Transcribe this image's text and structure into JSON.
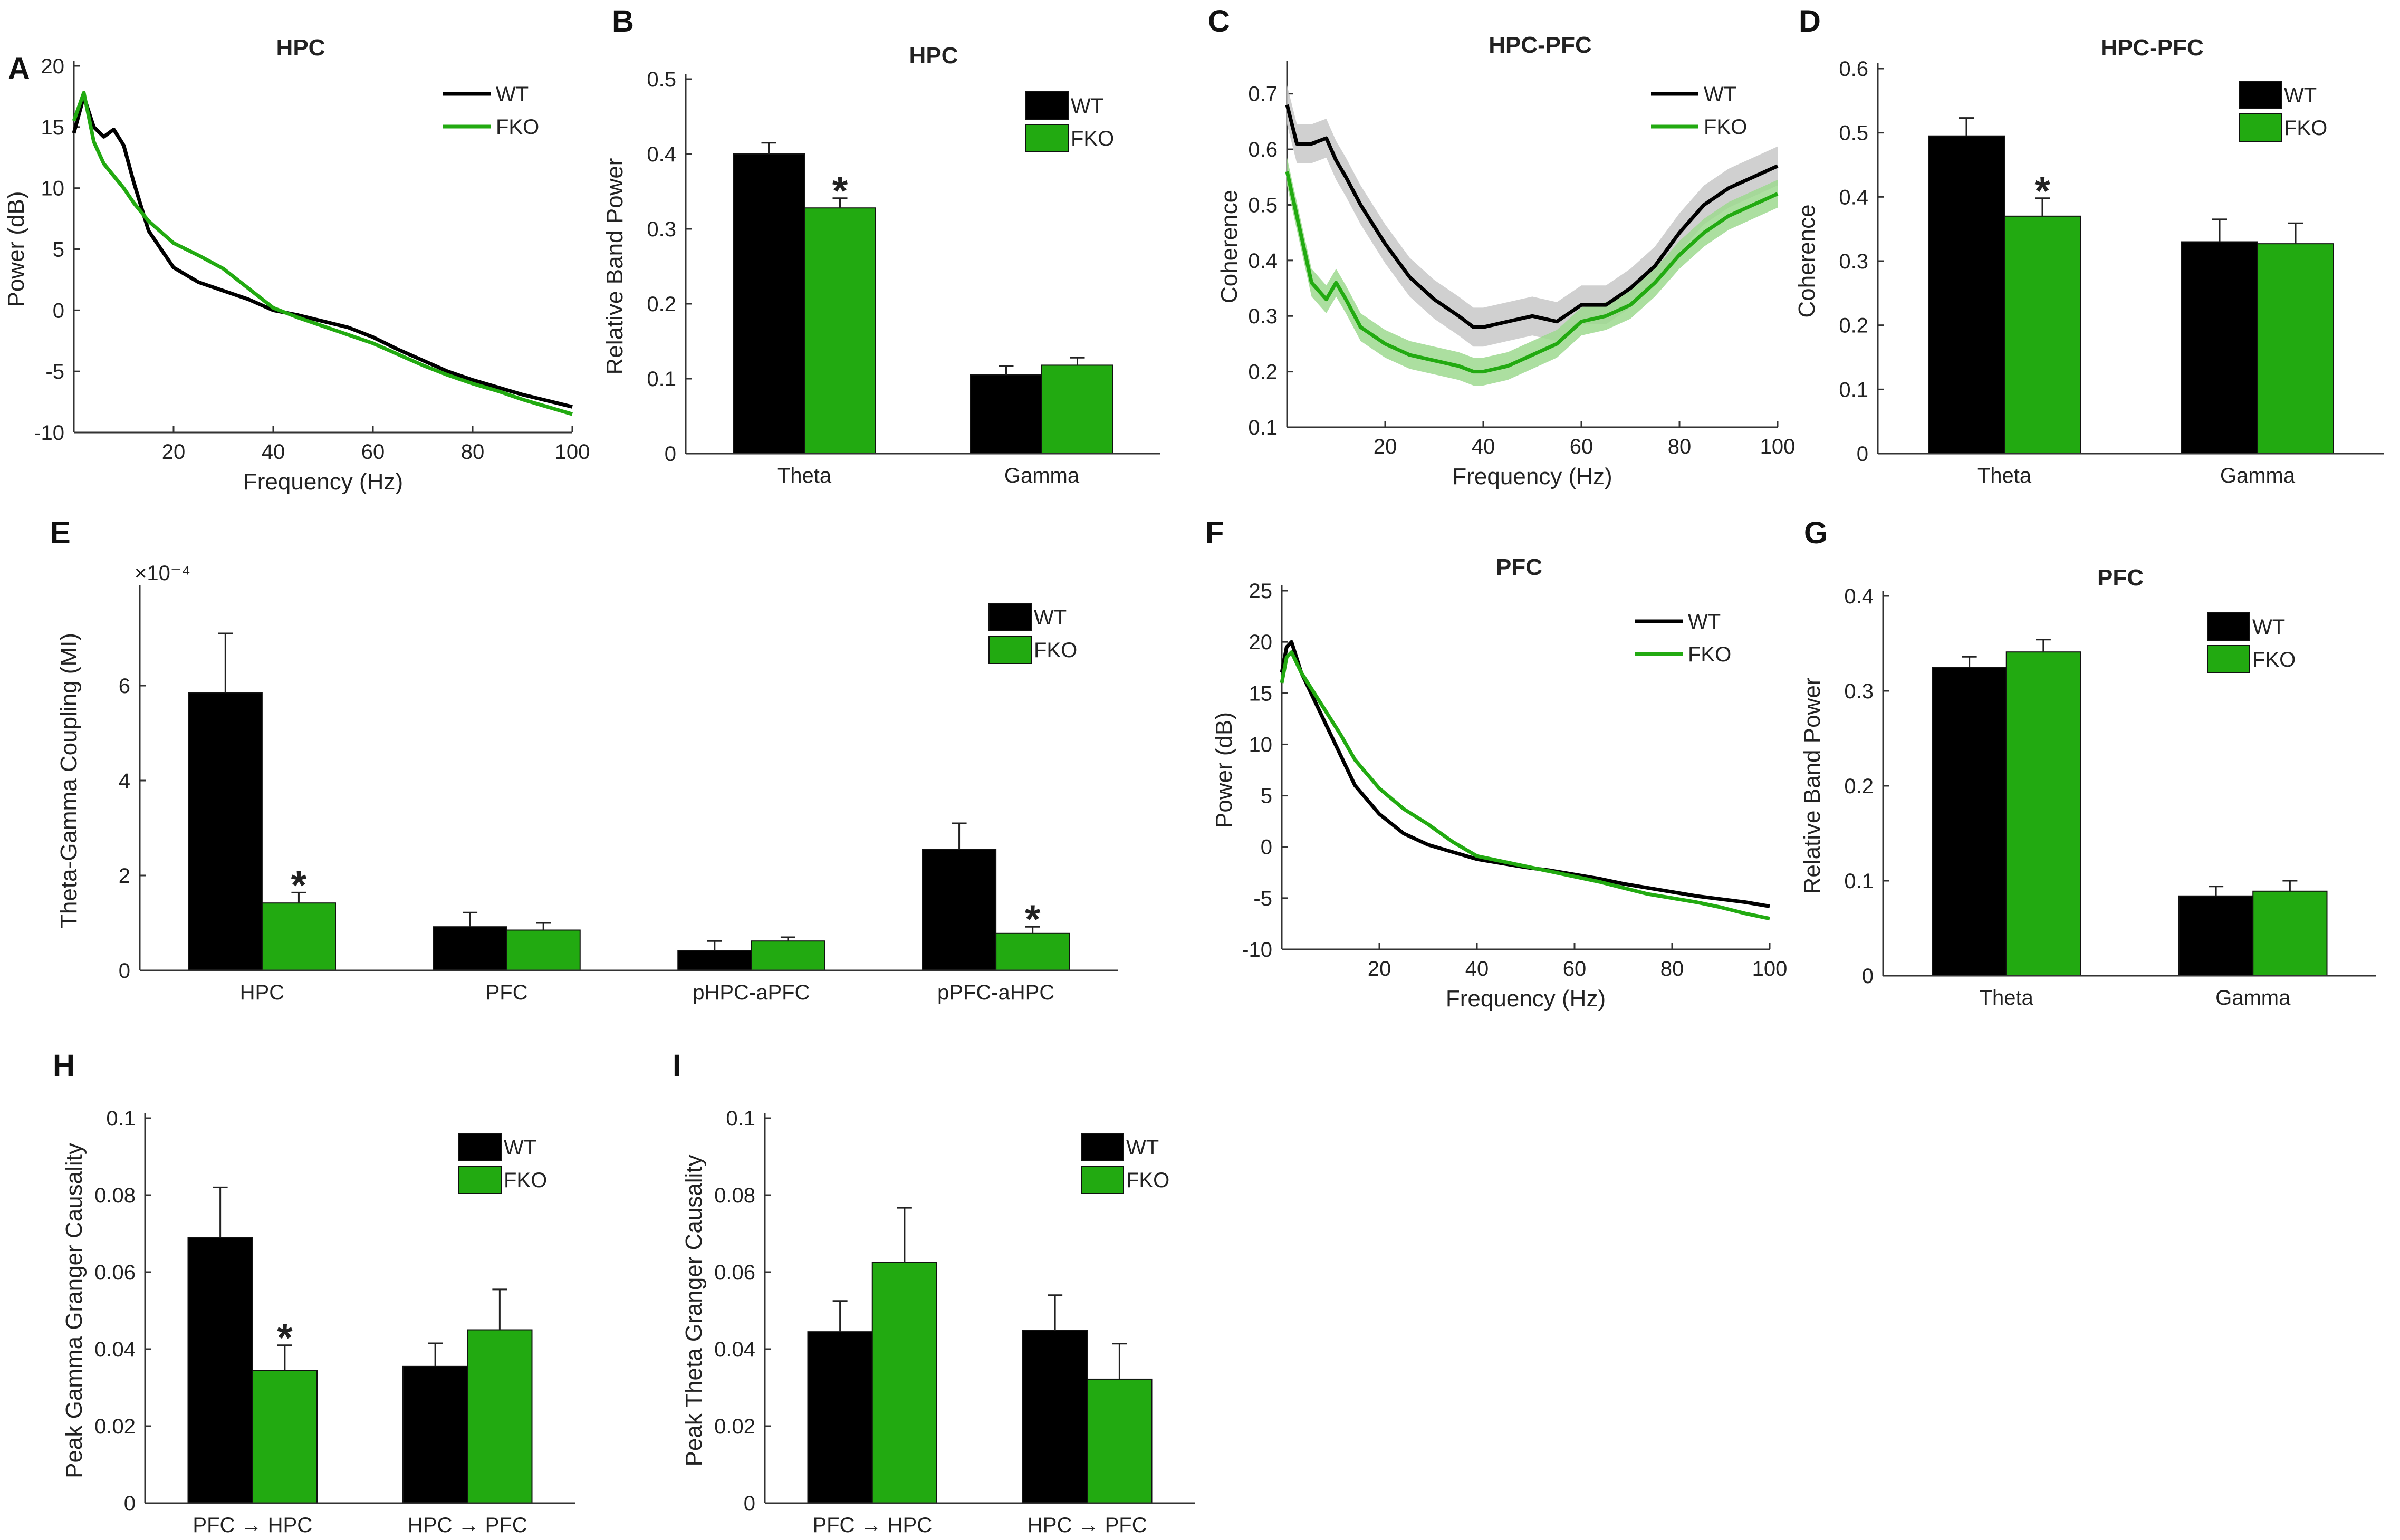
{
  "colors": {
    "wt": "#000000",
    "fko": "#22aa11",
    "wt_band": "#c8c8c8",
    "fko_band": "#9ed98f",
    "axis": "#333333"
  },
  "legend": {
    "wt": "WT",
    "fko": "FKO"
  },
  "chart_data": [
    {
      "id": "A",
      "panel_label": "A",
      "type": "line",
      "title": "HPC",
      "xlabel": "Frequency (Hz)",
      "ylabel": "Power (dB)",
      "xlim": [
        0,
        100
      ],
      "ylim": [
        -10,
        20
      ],
      "xticks": [
        20,
        40,
        60,
        80,
        100
      ],
      "xtick_labels": [
        "20",
        "40",
        "60",
        "80",
        "100"
      ],
      "yticks": [
        -10,
        -5,
        0,
        5,
        10,
        15,
        20
      ],
      "ytick_labels": [
        "-10",
        "-5",
        "0",
        "5",
        "10",
        "15",
        "20"
      ],
      "x": [
        0,
        2,
        4,
        6,
        8,
        10,
        12,
        15,
        20,
        25,
        30,
        35,
        40,
        45,
        50,
        55,
        60,
        65,
        70,
        75,
        80,
        85,
        90,
        95,
        100
      ],
      "series": [
        {
          "name": "WT",
          "values": [
            14.5,
            17.5,
            15.0,
            14.2,
            14.8,
            13.5,
            10.5,
            6.5,
            3.5,
            2.3,
            1.6,
            0.9,
            0.0,
            -0.4,
            -0.9,
            -1.4,
            -2.2,
            -3.2,
            -4.1,
            -5.0,
            -5.7,
            -6.3,
            -6.9,
            -7.4,
            -7.9
          ]
        },
        {
          "name": "FKO",
          "values": [
            15.5,
            17.8,
            13.8,
            12.0,
            11.0,
            10.0,
            8.8,
            7.3,
            5.5,
            4.5,
            3.4,
            1.8,
            0.2,
            -0.6,
            -1.3,
            -2.0,
            -2.7,
            -3.6,
            -4.5,
            -5.3,
            -6.0,
            -6.6,
            -7.3,
            -7.9,
            -8.5
          ]
        }
      ]
    },
    {
      "id": "B",
      "panel_label": "B",
      "type": "bar",
      "title": "HPC",
      "ylabel": "Relative Band Power",
      "ylim": [
        0,
        0.5
      ],
      "yticks": [
        0,
        0.1,
        0.2,
        0.3,
        0.4,
        0.5
      ],
      "ytick_labels": [
        "0",
        "0.1",
        "0.2",
        "0.3",
        "0.4",
        "0.5"
      ],
      "categories": [
        "Theta",
        "Gamma"
      ],
      "series": [
        {
          "name": "WT",
          "values": [
            0.4,
            0.105
          ],
          "errors": [
            0.015,
            0.012
          ]
        },
        {
          "name": "FKO",
          "values": [
            0.328,
            0.118
          ],
          "errors": [
            0.013,
            0.01
          ]
        }
      ],
      "annotations": [
        {
          "text": "*",
          "category": 0,
          "series": 1
        }
      ]
    },
    {
      "id": "C",
      "panel_label": "C",
      "type": "line",
      "title": "HPC-PFC",
      "xlabel": "Frequency (Hz)",
      "ylabel": "Coherence",
      "xlim": [
        0,
        100
      ],
      "ylim": [
        0.1,
        0.75
      ],
      "xticks": [
        20,
        40,
        60,
        80,
        100
      ],
      "xtick_labels": [
        "20",
        "40",
        "60",
        "80",
        "100"
      ],
      "yticks": [
        0.1,
        0.2,
        0.3,
        0.4,
        0.5,
        0.6,
        0.7
      ],
      "ytick_labels": [
        "0.1",
        "0.2",
        "0.3",
        "0.4",
        "0.5",
        "0.6",
        "0.7"
      ],
      "x": [
        0,
        2,
        5,
        8,
        10,
        12,
        15,
        20,
        25,
        30,
        35,
        38,
        40,
        45,
        50,
        55,
        60,
        65,
        70,
        75,
        80,
        85,
        90,
        95,
        100
      ],
      "series": [
        {
          "name": "WT",
          "values": [
            0.68,
            0.61,
            0.61,
            0.62,
            0.58,
            0.55,
            0.5,
            0.43,
            0.37,
            0.33,
            0.3,
            0.28,
            0.28,
            0.29,
            0.3,
            0.29,
            0.32,
            0.32,
            0.35,
            0.39,
            0.45,
            0.5,
            0.53,
            0.55,
            0.57
          ],
          "band": 0.035
        },
        {
          "name": "FKO",
          "values": [
            0.56,
            0.48,
            0.36,
            0.33,
            0.36,
            0.33,
            0.28,
            0.25,
            0.23,
            0.22,
            0.21,
            0.2,
            0.2,
            0.21,
            0.23,
            0.25,
            0.29,
            0.3,
            0.32,
            0.36,
            0.41,
            0.45,
            0.48,
            0.5,
            0.52
          ],
          "band": 0.025
        }
      ]
    },
    {
      "id": "D",
      "panel_label": "D",
      "type": "bar",
      "title": "HPC-PFC",
      "ylabel": "Coherence",
      "ylim": [
        0,
        0.6
      ],
      "yticks": [
        0,
        0.1,
        0.2,
        0.3,
        0.4,
        0.5,
        0.6
      ],
      "ytick_labels": [
        "0",
        "0.1",
        "0.2",
        "0.3",
        "0.4",
        "0.5",
        "0.6"
      ],
      "categories": [
        "Theta",
        "Gamma"
      ],
      "series": [
        {
          "name": "WT",
          "values": [
            0.495,
            0.33
          ],
          "errors": [
            0.028,
            0.035
          ]
        },
        {
          "name": "FKO",
          "values": [
            0.37,
            0.327
          ],
          "errors": [
            0.028,
            0.032
          ]
        }
      ],
      "annotations": [
        {
          "text": "*",
          "category": 0,
          "series": 1
        }
      ]
    },
    {
      "id": "E",
      "panel_label": "E",
      "type": "bar",
      "title": "",
      "ylabel": "Theta-Gamma Coupling (MI)",
      "ylim": [
        0,
        8
      ],
      "y_multiplier": "×10⁻⁴",
      "yticks": [
        0,
        2,
        4,
        6
      ],
      "ytick_labels": [
        "0",
        "2",
        "4",
        "6"
      ],
      "categories": [
        "HPC",
        "PFC",
        "pHPC-aPFC",
        "pPFC-aHPC"
      ],
      "series": [
        {
          "name": "WT",
          "values": [
            5.85,
            0.92,
            0.42,
            2.55
          ],
          "errors": [
            1.25,
            0.3,
            0.2,
            0.55
          ]
        },
        {
          "name": "FKO",
          "values": [
            1.42,
            0.85,
            0.62,
            0.78
          ],
          "errors": [
            0.22,
            0.15,
            0.08,
            0.14
          ]
        }
      ],
      "annotations": [
        {
          "text": "*",
          "category": 0,
          "series": 1
        },
        {
          "text": "*",
          "category": 3,
          "series": 1
        }
      ]
    },
    {
      "id": "F",
      "panel_label": "F",
      "type": "line",
      "title": "PFC",
      "xlabel": "Frequency (Hz)",
      "ylabel": "Power (dB)",
      "xlim": [
        0,
        100
      ],
      "ylim": [
        -10,
        25
      ],
      "xticks": [
        20,
        40,
        60,
        80,
        100
      ],
      "xtick_labels": [
        "20",
        "40",
        "60",
        "80",
        "100"
      ],
      "yticks": [
        -10,
        -5,
        0,
        5,
        10,
        15,
        20,
        25
      ],
      "ytick_labels": [
        "-10",
        "-5",
        "0",
        "5",
        "10",
        "15",
        "20",
        "25"
      ],
      "x": [
        0,
        1,
        2,
        4,
        6,
        8,
        10,
        12,
        15,
        20,
        25,
        30,
        35,
        40,
        45,
        50,
        55,
        60,
        65,
        70,
        75,
        80,
        85,
        90,
        95,
        100
      ],
      "series": [
        {
          "name": "WT",
          "values": [
            17,
            19.5,
            20,
            17,
            15,
            13,
            11,
            9,
            6,
            3.2,
            1.3,
            0.2,
            -0.5,
            -1.2,
            -1.6,
            -2.0,
            -2.3,
            -2.7,
            -3.1,
            -3.6,
            -4.0,
            -4.4,
            -4.8,
            -5.1,
            -5.4,
            -5.8
          ]
        },
        {
          "name": "FKO",
          "values": [
            16,
            18.5,
            19,
            17,
            15.5,
            14,
            12.5,
            11,
            8.5,
            5.7,
            3.7,
            2.2,
            0.5,
            -0.9,
            -1.4,
            -1.9,
            -2.4,
            -2.9,
            -3.4,
            -4.0,
            -4.6,
            -5.0,
            -5.4,
            -5.9,
            -6.5,
            -7.0
          ]
        }
      ]
    },
    {
      "id": "G",
      "panel_label": "G",
      "type": "bar",
      "title": "PFC",
      "ylabel": "Relative Band Power",
      "ylim": [
        0,
        0.4
      ],
      "yticks": [
        0,
        0.1,
        0.2,
        0.3,
        0.4
      ],
      "ytick_labels": [
        "0",
        "0.1",
        "0.2",
        "0.3",
        "0.4"
      ],
      "categories": [
        "Theta",
        "Gamma"
      ],
      "series": [
        {
          "name": "WT",
          "values": [
            0.325,
            0.084
          ],
          "errors": [
            0.011,
            0.01
          ]
        },
        {
          "name": "FKO",
          "values": [
            0.341,
            0.089
          ],
          "errors": [
            0.013,
            0.011
          ]
        }
      ],
      "annotations": []
    },
    {
      "id": "H",
      "panel_label": "H",
      "type": "bar",
      "title": "",
      "ylabel": "Peak Gamma Granger Causality",
      "ylim": [
        0,
        0.1
      ],
      "yticks": [
        0,
        0.02,
        0.04,
        0.06,
        0.08,
        0.1
      ],
      "ytick_labels": [
        "0",
        "0.02",
        "0.04",
        "0.06",
        "0.08",
        "0.1"
      ],
      "categories": [
        "PFC → HPC",
        "HPC → PFC"
      ],
      "series": [
        {
          "name": "WT",
          "values": [
            0.069,
            0.0355
          ],
          "errors": [
            0.013,
            0.006
          ]
        },
        {
          "name": "FKO",
          "values": [
            0.0345,
            0.045
          ],
          "errors": [
            0.0065,
            0.0105
          ]
        }
      ],
      "annotations": [
        {
          "text": "*",
          "category": 0,
          "series": 1
        }
      ]
    },
    {
      "id": "I",
      "panel_label": "I",
      "type": "bar",
      "title": "",
      "ylabel": "Peak Theta Granger Causality",
      "ylim": [
        0,
        0.1
      ],
      "yticks": [
        0,
        0.02,
        0.04,
        0.06,
        0.08,
        0.1
      ],
      "ytick_labels": [
        "0",
        "0.02",
        "0.04",
        "0.06",
        "0.08",
        "0.1"
      ],
      "categories": [
        "PFC → HPC",
        "HPC → PFC"
      ],
      "series": [
        {
          "name": "WT",
          "values": [
            0.0445,
            0.0448
          ],
          "errors": [
            0.008,
            0.0092
          ]
        },
        {
          "name": "FKO",
          "values": [
            0.0625,
            0.0322
          ],
          "errors": [
            0.0142,
            0.0092
          ]
        }
      ],
      "annotations": []
    }
  ]
}
